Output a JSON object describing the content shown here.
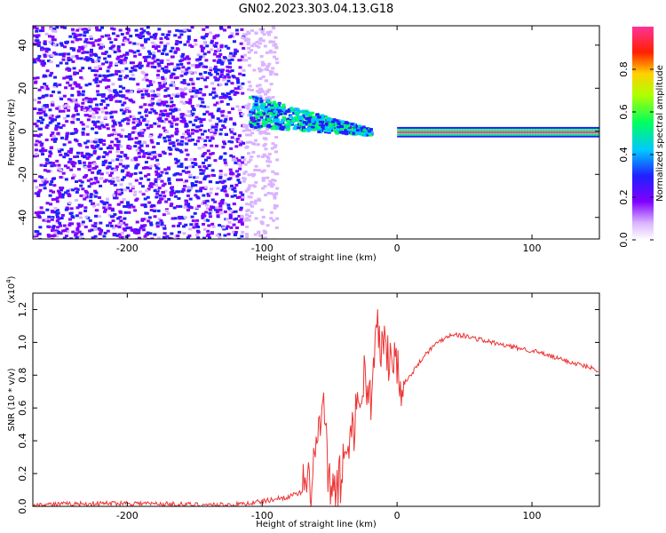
{
  "chart_data": [
    {
      "type": "heatmap",
      "title": "GN02.2023.303.04.13.G18",
      "xlabel": "Height of straight line (km)",
      "ylabel": "Frequency (Hz)",
      "xlim": [
        -270,
        150
      ],
      "ylim": [
        -50,
        49
      ],
      "xticks": [
        -200,
        -100,
        0,
        100
      ],
      "yticks": [
        -40,
        -20,
        0,
        20,
        40
      ],
      "colorbar": {
        "label": "Normalized spectral amplitude",
        "range": [
          0,
          1
        ],
        "ticks": [
          "0.0",
          "0.2",
          "0.4",
          "0.6",
          "0.8"
        ],
        "colormap": "rainbow (white-purple-blue-cyan-green-yellow-red-magenta)"
      },
      "regions": [
        {
          "x_range": [
            -270,
            -115
          ],
          "y_range": [
            -50,
            49
          ],
          "amplitude": 0.05,
          "description": "broad low-amplitude scatter"
        },
        {
          "x_range": [
            -110,
            -20
          ],
          "center_freq_start": 10,
          "center_freq_end": 0,
          "amplitude": 0.35
        },
        {
          "x_range": [
            0,
            150
          ],
          "center_freq": 0,
          "amplitude": 0.9
        }
      ]
    },
    {
      "type": "line",
      "xlabel": "Height of straight line (km)",
      "ylabel": "SNR (10 * v/v)",
      "yscale_note": "(x10",
      "yscale_exp": "4",
      "yscale_close": ")",
      "xlim": [
        -270,
        150
      ],
      "ylim": [
        0,
        1.3
      ],
      "xticks": [
        -200,
        -100,
        0,
        100
      ],
      "yticks": [
        "0.0",
        "0.2",
        "0.4",
        "0.6",
        "0.8",
        "1.0",
        "1.2"
      ],
      "color": "#ee3333",
      "x": [
        -270,
        -200,
        -150,
        -120,
        -100,
        -80,
        -65,
        -60,
        -55,
        -50,
        -45,
        -40,
        -35,
        -30,
        -25,
        -20,
        -15,
        -10,
        -5,
        0,
        5,
        10,
        20,
        30,
        40,
        50,
        60,
        80,
        100,
        120,
        150
      ],
      "y": [
        0.01,
        0.02,
        0.01,
        0.01,
        0.03,
        0.06,
        0.1,
        0.35,
        0.6,
        0.1,
        0.05,
        0.25,
        0.45,
        0.55,
        0.8,
        0.65,
        1.05,
        0.95,
        0.9,
        0.85,
        0.75,
        0.8,
        0.92,
        1.0,
        1.05,
        1.04,
        1.02,
        0.98,
        0.95,
        0.9,
        0.83
      ]
    }
  ]
}
